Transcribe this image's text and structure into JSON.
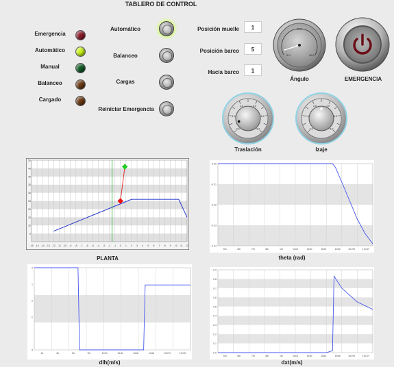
{
  "panel": {
    "title": "TABLERO DE CONTROL"
  },
  "indicators": [
    {
      "label": "Emergencia",
      "color": "#8a1c2c"
    },
    {
      "label": "Automático",
      "color": "#c7f21a"
    },
    {
      "label": "Manual",
      "color": "#0f5a25"
    },
    {
      "label": "Balanceo",
      "color": "#6b3a14"
    },
    {
      "label": "Cargado",
      "color": "#6b3a14"
    }
  ],
  "buttons": [
    {
      "label": "Automático"
    },
    {
      "label": "Balanceo"
    },
    {
      "label": "Cargas"
    },
    {
      "label": "Reiniciar Emergencia"
    }
  ],
  "fields": [
    {
      "label": "Posición muelle",
      "value": "1"
    },
    {
      "label": "Posición barco",
      "value": "5"
    },
    {
      "label": "Hacia barco",
      "value": "1"
    }
  ],
  "angle_gauge": {
    "label": "Ángulo",
    "ticks": [
      "0.0",
      "20.0",
      "40.0"
    ],
    "value": 4
  },
  "emergency": {
    "label": "EMERGENCIA"
  },
  "knobs": [
    {
      "label": "Traslación",
      "ticks": [
        "0.0",
        "0.5",
        "1.0",
        "1.5",
        "2.0",
        "2.5",
        "3.0",
        "3.5",
        "4.0",
        "4.5",
        "5.0"
      ],
      "value": 0.5
    },
    {
      "label": "Izaje",
      "ticks": [
        "0.0",
        "0.5",
        "1.0",
        "1.5",
        "2.0",
        "2.5",
        "3.0",
        "3.5",
        "4.0",
        "4.5",
        "5.0"
      ],
      "value": 2.5
    }
  ],
  "chart_data": [
    {
      "type": "line",
      "title": "",
      "xlabel": "PLANTA",
      "ylabel": "",
      "xlim": [
        -16,
        12
      ],
      "ylim": [
        0,
        50
      ],
      "x_ticks": [
        "-16",
        "-15",
        "-14",
        "-13",
        "-12",
        "-11",
        "-10",
        "-9",
        "-8",
        "-7",
        "-6",
        "-5",
        "-4",
        "-3",
        "-2",
        "-1",
        "0",
        "1",
        "2",
        "3",
        "4",
        "5",
        "6",
        "7",
        "8",
        "9",
        "10",
        "11",
        "12"
      ],
      "y_ticks": [
        "5",
        "10",
        "15",
        "20",
        "25",
        "30",
        "35",
        "40",
        "45",
        "50"
      ],
      "grid": true,
      "legend": "none",
      "series": [
        {
          "color": "#2233cc",
          "x": [
            -12,
            2,
            10.5,
            12
          ],
          "y": [
            6.5,
            26,
            26,
            15
          ]
        },
        {
          "color": "#dd3333",
          "x": [
            0,
            0.8
          ],
          "y": [
            25,
            46
          ]
        },
        {
          "color": "#44bb44",
          "x": [
            -1.5,
            -1.5
          ],
          "y": [
            0,
            50
          ]
        }
      ],
      "markers": [
        {
          "x": 0,
          "y": 25,
          "color": "#ee1111"
        },
        {
          "x": 0.8,
          "y": 46,
          "color": "#22cc22"
        }
      ]
    },
    {
      "type": "line",
      "title": "",
      "xlabel": "theta (rad)",
      "ylabel": "",
      "ylim": [
        -0.04,
        0
      ],
      "x_ticks": [
        "5th",
        "6th",
        "7th",
        "8th",
        "1th",
        "1th2t",
        "1th4t",
        "1th6t",
        "1th8t",
        "1th70t",
        "1th72t"
      ],
      "y_ticks": [
        "0.00",
        "-0.01",
        "-0.02",
        "-0.03",
        "-0.04"
      ],
      "grid": true,
      "legend": "none",
      "series": [
        {
          "color": "#4455ee",
          "x": [
            0,
            0.2,
            0.5,
            0.74,
            0.76,
            0.8,
            0.85,
            0.9,
            0.95,
            1
          ],
          "y": [
            0,
            0,
            0,
            0,
            -0.002,
            -0.009,
            -0.018,
            -0.027,
            -0.034,
            -0.039
          ]
        }
      ]
    },
    {
      "type": "line",
      "title": "",
      "xlabel": "dlh(m/s)",
      "ylabel": "",
      "ylim": [
        -3,
        2
      ],
      "x_ticks": [
        "1k",
        "3k",
        "5k",
        "7th",
        "1th2t",
        "1th4t",
        "1th6t",
        "1th8t",
        "1th70t",
        "1th72t"
      ],
      "y_ticks": [
        "2",
        "1",
        "0",
        "-1",
        "-3"
      ],
      "grid": true,
      "legend": "none",
      "series": [
        {
          "color": "#4455ee",
          "x": [
            0,
            0.28,
            0.29,
            0.7,
            0.71,
            1
          ],
          "y": [
            2,
            2,
            -3,
            -3,
            0.95,
            0.95
          ]
        }
      ]
    },
    {
      "type": "line",
      "title": "",
      "xlabel": "dxt(m/s)",
      "ylabel": "",
      "ylim": [
        0,
        0.9
      ],
      "x_ticks": [
        "5th",
        "6th",
        "7th",
        "8th",
        "1th",
        "1th2t",
        "1th4t",
        "1th6t",
        "1th8t",
        "1th70t",
        "1th72t"
      ],
      "y_ticks": [
        "0.9",
        "0.8",
        "0.7",
        "0.6",
        "0.5",
        "0.4",
        "0.3",
        "0.2",
        "0.1",
        "0.0"
      ],
      "grid": true,
      "legend": "none",
      "series": [
        {
          "color": "#4455ee",
          "x": [
            0,
            0.2,
            0.7,
            0.74,
            0.75,
            0.8,
            0.9,
            1
          ],
          "y": [
            0,
            0,
            0,
            0.02,
            0.83,
            0.7,
            0.55,
            0.47
          ]
        }
      ]
    }
  ]
}
